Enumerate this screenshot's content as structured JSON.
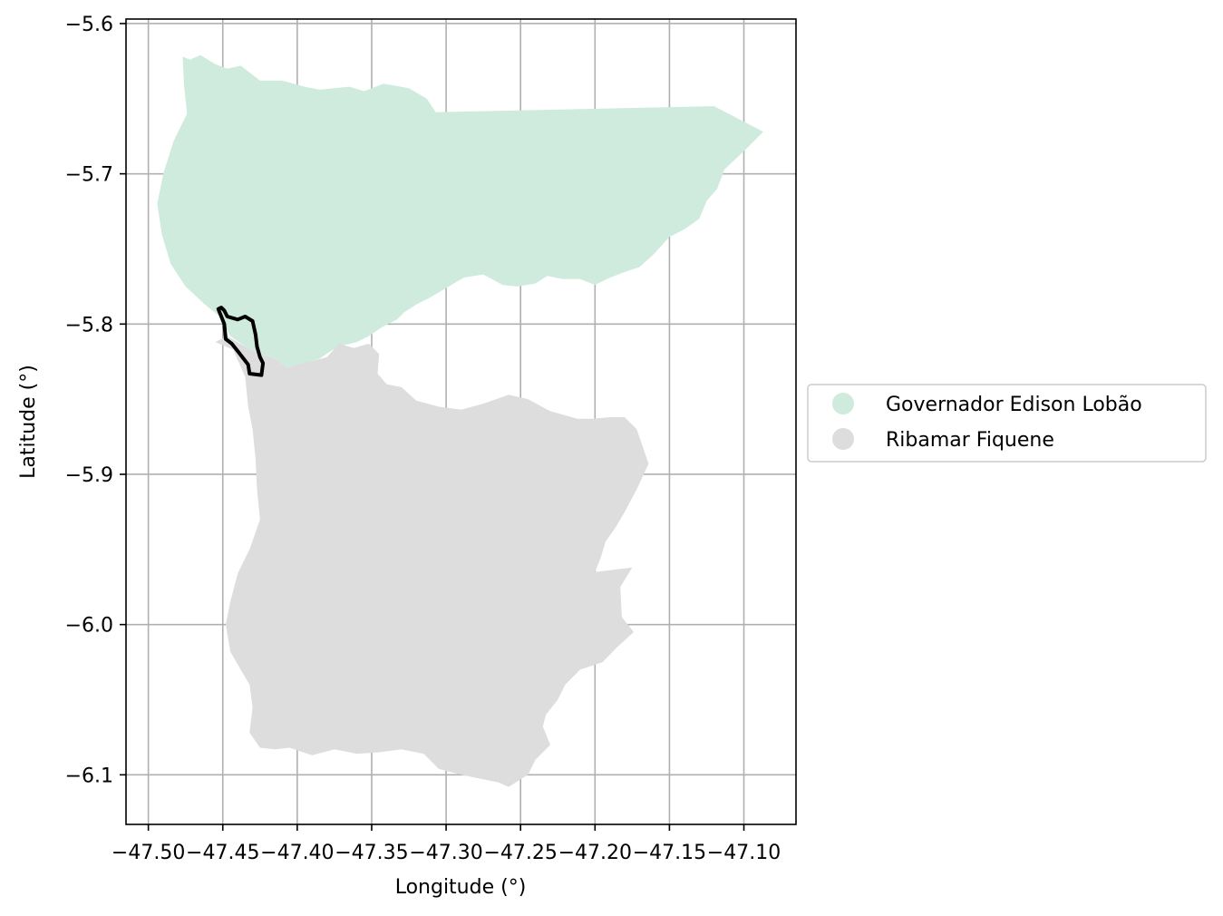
{
  "chart_data": {
    "type": "map",
    "xlabel": "Longitude (°)",
    "ylabel": "Latitude (°)",
    "xlim": [
      -47.515,
      -47.065
    ],
    "ylim": [
      -6.133,
      -5.597
    ],
    "grid": true,
    "x_ticks": [
      {
        "value": -47.5,
        "label": "−47.50"
      },
      {
        "value": -47.45,
        "label": "−47.45"
      },
      {
        "value": -47.4,
        "label": "−47.40"
      },
      {
        "value": -47.35,
        "label": "−47.35"
      },
      {
        "value": -47.3,
        "label": "−47.30"
      },
      {
        "value": -47.25,
        "label": "−47.25"
      },
      {
        "value": -47.2,
        "label": "−47.20"
      },
      {
        "value": -47.15,
        "label": "−47.15"
      },
      {
        "value": -47.1,
        "label": "−47.10"
      }
    ],
    "y_ticks": [
      {
        "value": -5.6,
        "label": "−5.6"
      },
      {
        "value": -5.7,
        "label": "−5.7"
      },
      {
        "value": -5.8,
        "label": "−5.8"
      },
      {
        "value": -5.9,
        "label": "−5.9"
      },
      {
        "value": -6.0,
        "label": "−6.0"
      },
      {
        "value": -6.1,
        "label": "−6.1"
      }
    ],
    "legend_position": "center-right",
    "regions": [
      {
        "name": "Governador Edison Lobão",
        "color": "#cfebdd",
        "coords": [
          [
            -47.477,
            -5.622
          ],
          [
            -47.472,
            -5.624
          ],
          [
            -47.465,
            -5.621
          ],
          [
            -47.455,
            -5.627
          ],
          [
            -47.447,
            -5.63
          ],
          [
            -47.438,
            -5.628
          ],
          [
            -47.425,
            -5.638
          ],
          [
            -47.41,
            -5.638
          ],
          [
            -47.395,
            -5.642
          ],
          [
            -47.385,
            -5.644
          ],
          [
            -47.375,
            -5.643
          ],
          [
            -47.365,
            -5.642
          ],
          [
            -47.355,
            -5.645
          ],
          [
            -47.342,
            -5.64
          ],
          [
            -47.325,
            -5.643
          ],
          [
            -47.313,
            -5.65
          ],
          [
            -47.307,
            -5.659
          ],
          [
            -47.12,
            -5.655
          ],
          [
            -47.087,
            -5.672
          ],
          [
            -47.1,
            -5.685
          ],
          [
            -47.113,
            -5.697
          ],
          [
            -47.118,
            -5.71
          ],
          [
            -47.125,
            -5.718
          ],
          [
            -47.13,
            -5.73
          ],
          [
            -47.14,
            -5.737
          ],
          [
            -47.15,
            -5.742
          ],
          [
            -47.16,
            -5.753
          ],
          [
            -47.17,
            -5.762
          ],
          [
            -47.182,
            -5.766
          ],
          [
            -47.192,
            -5.77
          ],
          [
            -47.2,
            -5.774
          ],
          [
            -47.21,
            -5.77
          ],
          [
            -47.222,
            -5.77
          ],
          [
            -47.232,
            -5.768
          ],
          [
            -47.24,
            -5.773
          ],
          [
            -47.252,
            -5.775
          ],
          [
            -47.262,
            -5.774
          ],
          [
            -47.275,
            -5.767
          ],
          [
            -47.288,
            -5.769
          ],
          [
            -47.3,
            -5.776
          ],
          [
            -47.312,
            -5.783
          ],
          [
            -47.32,
            -5.787
          ],
          [
            -47.328,
            -5.792
          ],
          [
            -47.333,
            -5.797
          ],
          [
            -47.343,
            -5.802
          ],
          [
            -47.352,
            -5.808
          ],
          [
            -47.36,
            -5.812
          ],
          [
            -47.373,
            -5.815
          ],
          [
            -47.385,
            -5.823
          ],
          [
            -47.395,
            -5.826
          ],
          [
            -47.407,
            -5.829
          ],
          [
            -47.415,
            -5.823
          ],
          [
            -47.425,
            -5.82
          ],
          [
            -47.435,
            -5.815
          ],
          [
            -47.445,
            -5.808
          ],
          [
            -47.452,
            -5.795
          ],
          [
            -47.462,
            -5.787
          ],
          [
            -47.475,
            -5.775
          ],
          [
            -47.485,
            -5.76
          ],
          [
            -47.491,
            -5.74
          ],
          [
            -47.494,
            -5.72
          ],
          [
            -47.49,
            -5.7
          ],
          [
            -47.483,
            -5.678
          ],
          [
            -47.474,
            -5.66
          ],
          [
            -47.476,
            -5.641
          ]
        ]
      },
      {
        "name": "Ribamar Fiquene",
        "color": "#dddddd",
        "coords": [
          [
            -47.407,
            -5.829
          ],
          [
            -47.392,
            -5.825
          ],
          [
            -47.38,
            -5.822
          ],
          [
            -47.372,
            -5.813
          ],
          [
            -47.362,
            -5.816
          ],
          [
            -47.352,
            -5.813
          ],
          [
            -47.345,
            -5.82
          ],
          [
            -47.346,
            -5.833
          ],
          [
            -47.34,
            -5.84
          ],
          [
            -47.33,
            -5.842
          ],
          [
            -47.32,
            -5.851
          ],
          [
            -47.305,
            -5.855
          ],
          [
            -47.29,
            -5.857
          ],
          [
            -47.275,
            -5.853
          ],
          [
            -47.258,
            -5.847
          ],
          [
            -47.245,
            -5.85
          ],
          [
            -47.23,
            -5.858
          ],
          [
            -47.212,
            -5.863
          ],
          [
            -47.202,
            -5.863
          ],
          [
            -47.19,
            -5.862
          ],
          [
            -47.18,
            -5.862
          ],
          [
            -47.172,
            -5.87
          ],
          [
            -47.164,
            -5.893
          ],
          [
            -47.172,
            -5.91
          ],
          [
            -47.18,
            -5.925
          ],
          [
            -47.186,
            -5.935
          ],
          [
            -47.193,
            -5.945
          ],
          [
            -47.196,
            -5.955
          ],
          [
            -47.2,
            -5.965
          ],
          [
            -47.175,
            -5.962
          ],
          [
            -47.183,
            -5.975
          ],
          [
            -47.182,
            -5.995
          ],
          [
            -47.174,
            -6.005
          ],
          [
            -47.185,
            -6.015
          ],
          [
            -47.195,
            -6.025
          ],
          [
            -47.21,
            -6.03
          ],
          [
            -47.22,
            -6.04
          ],
          [
            -47.225,
            -6.05
          ],
          [
            -47.233,
            -6.06
          ],
          [
            -47.235,
            -6.068
          ],
          [
            -47.23,
            -6.08
          ],
          [
            -47.24,
            -6.09
          ],
          [
            -47.245,
            -6.1
          ],
          [
            -47.258,
            -6.108
          ],
          [
            -47.265,
            -6.105
          ],
          [
            -47.28,
            -6.102
          ],
          [
            -47.29,
            -6.1
          ],
          [
            -47.305,
            -6.096
          ],
          [
            -47.315,
            -6.086
          ],
          [
            -47.33,
            -6.083
          ],
          [
            -47.345,
            -6.085
          ],
          [
            -47.36,
            -6.086
          ],
          [
            -47.375,
            -6.083
          ],
          [
            -47.39,
            -6.087
          ],
          [
            -47.405,
            -6.082
          ],
          [
            -47.415,
            -6.083
          ],
          [
            -47.425,
            -6.082
          ],
          [
            -47.432,
            -6.072
          ],
          [
            -47.43,
            -6.055
          ],
          [
            -47.432,
            -6.04
          ],
          [
            -47.438,
            -6.03
          ],
          [
            -47.445,
            -6.018
          ],
          [
            -47.448,
            -6.0
          ],
          [
            -47.445,
            -5.985
          ],
          [
            -47.44,
            -5.966
          ],
          [
            -47.432,
            -5.95
          ],
          [
            -47.425,
            -5.93
          ],
          [
            -47.427,
            -5.91
          ],
          [
            -47.428,
            -5.89
          ],
          [
            -47.43,
            -5.87
          ],
          [
            -47.433,
            -5.855
          ],
          [
            -47.435,
            -5.835
          ],
          [
            -47.44,
            -5.824
          ],
          [
            -47.443,
            -5.817
          ],
          [
            -47.455,
            -5.812
          ],
          [
            -47.447,
            -5.808
          ],
          [
            -47.435,
            -5.815
          ],
          [
            -47.425,
            -5.82
          ],
          [
            -47.415,
            -5.823
          ]
        ]
      }
    ],
    "highlight_outline": {
      "color": "#000000",
      "coords": [
        [
          -47.453,
          -5.79
        ],
        [
          -47.449,
          -5.8
        ],
        [
          -47.448,
          -5.81
        ],
        [
          -47.444,
          -5.813
        ],
        [
          -47.44,
          -5.818
        ],
        [
          -47.433,
          -5.827
        ],
        [
          -47.432,
          -5.833
        ],
        [
          -47.424,
          -5.834
        ],
        [
          -47.423,
          -5.826
        ],
        [
          -47.425,
          -5.822
        ],
        [
          -47.427,
          -5.815
        ],
        [
          -47.428,
          -5.807
        ],
        [
          -47.43,
          -5.798
        ],
        [
          -47.435,
          -5.795
        ],
        [
          -47.44,
          -5.797
        ],
        [
          -47.447,
          -5.795
        ],
        [
          -47.449,
          -5.791
        ],
        [
          -47.451,
          -5.789
        ]
      ]
    }
  }
}
